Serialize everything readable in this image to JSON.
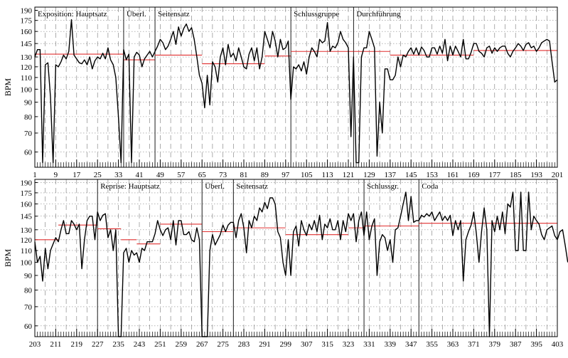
{
  "chart_data": [
    {
      "type": "line",
      "ylabel": "BPM",
      "yscale": "log",
      "ylim": [
        53,
        195
      ],
      "xlim": [
        1,
        201
      ],
      "grid": true,
      "y_ticks": [
        60,
        70,
        80,
        90,
        100,
        110,
        120,
        130,
        145,
        160,
        175,
        190
      ],
      "x_ticks": [
        1,
        9,
        17,
        25,
        33,
        41,
        49,
        57,
        65,
        73,
        81,
        89,
        97,
        105,
        113,
        121,
        129,
        137,
        145,
        153,
        161,
        169,
        177,
        185,
        193,
        201
      ],
      "sections": [
        {
          "label": "Exposition: Hauptsatz",
          "start": 1,
          "end": 35,
          "mean": 133
        },
        {
          "label": "Überl.",
          "start": 35,
          "end": 47,
          "mean": 127
        },
        {
          "label": "Seitensatz",
          "start": 47,
          "end": 99,
          "mean": 129,
          "sub_means": [
            {
              "start": 47,
              "end": 65,
              "mean": 132
            },
            {
              "start": 65,
              "end": 89,
              "mean": 123
            },
            {
              "start": 89,
              "end": 99,
              "mean": 131
            }
          ]
        },
        {
          "label": "Schlussgruppe",
          "start": 99,
          "end": 123,
          "mean": 136
        },
        {
          "label": "Durchführung",
          "start": 123,
          "end": 201,
          "mean": 135,
          "sub_means": [
            {
              "start": 123,
              "end": 137,
              "mean": 136
            },
            {
              "start": 137,
              "end": 169,
              "mean": 132
            },
            {
              "start": 169,
              "end": 201,
              "mean": 137
            }
          ]
        }
      ],
      "series": [
        {
          "x_start": 1,
          "values": [
            130,
            138,
            138,
            55,
            122,
            124,
            94,
            55,
            122,
            120,
            125,
            132,
            128,
            136,
            176,
            132,
            128,
            124,
            123,
            127,
            122,
            130,
            118,
            126,
            130,
            128,
            134,
            128,
            140,
            127,
            122,
            110,
            80,
            55,
            138,
            127,
            133,
            55,
            130,
            135,
            132,
            120,
            128,
            132,
            136,
            130,
            136,
            142,
            150,
            146,
            138,
            142,
            150,
            160,
            144,
            166,
            154,
            164,
            170,
            160,
            165,
            150,
            130,
            112,
            105,
            86,
            112,
            88,
            125,
            120,
            106,
            130,
            140,
            122,
            144,
            130,
            134,
            126,
            140,
            130,
            120,
            118,
            133,
            140,
            126,
            140,
            118,
            130,
            160,
            150,
            140,
            160,
            148,
            130,
            150,
            138,
            140,
            148,
            92,
            120,
            118,
            122,
            116,
            125,
            113,
            130,
            140,
            136,
            130,
            150,
            146,
            148,
            172,
            136,
            142,
            140,
            146,
            160,
            150,
            146,
            140,
            68,
            130,
            55,
            55,
            130,
            140,
            140,
            160,
            150,
            140,
            58,
            90,
            70,
            118,
            118,
            108,
            108,
            112,
            130,
            120,
            132,
            130,
            136,
            140,
            133,
            140,
            132,
            141,
            137,
            130,
            130,
            140,
            140,
            133,
            142,
            134,
            150,
            126,
            142,
            132,
            142,
            136,
            130,
            150,
            128,
            128,
            135,
            145,
            145,
            136,
            134,
            130,
            140,
            142,
            134,
            140,
            136,
            140,
            142,
            142,
            134,
            130,
            136,
            140,
            145,
            142,
            137,
            144,
            146,
            140,
            142,
            136,
            140,
            146,
            148,
            150,
            148,
            125,
            106,
            108
          ]
        }
      ]
    },
    {
      "type": "line",
      "ylabel": "BPM",
      "yscale": "log",
      "ylim": [
        55,
        195
      ],
      "xlim": [
        203,
        403
      ],
      "grid": true,
      "y_ticks": [
        60,
        70,
        80,
        90,
        100,
        110,
        120,
        130,
        145,
        160,
        175,
        190
      ],
      "x_ticks": [
        203,
        211,
        219,
        227,
        235,
        243,
        251,
        259,
        267,
        275,
        283,
        291,
        299,
        307,
        315,
        323,
        331,
        339,
        347,
        355,
        363,
        371,
        379,
        387,
        395,
        403
      ],
      "sections": [
        {
          "label": "",
          "start": 203,
          "end": 227,
          "mean": 120,
          "sub_means": [
            {
              "start": 203,
              "end": 212,
              "mean": 120
            },
            {
              "start": 212,
              "end": 227,
              "mean": 135
            }
          ]
        },
        {
          "label": "Reprise: Hauptsatz",
          "start": 227,
          "end": 267,
          "mean": 125,
          "sub_means": [
            {
              "start": 227,
              "end": 236,
              "mean": 131
            },
            {
              "start": 236,
              "end": 242,
              "mean": 120
            },
            {
              "start": 242,
              "end": 251,
              "mean": 116
            },
            {
              "start": 251,
              "end": 267,
              "mean": 136
            }
          ]
        },
        {
          "label": "Überl.",
          "start": 267,
          "end": 279,
          "mean": 128
        },
        {
          "label": "Seitensatz",
          "start": 279,
          "end": 329,
          "mean": 128,
          "sub_means": [
            {
              "start": 279,
              "end": 299,
              "mean": 132
            },
            {
              "start": 299,
              "end": 323,
              "mean": 125
            },
            {
              "start": 323,
              "end": 329,
              "mean": 132
            }
          ]
        },
        {
          "label": "Schlussgr.",
          "start": 329,
          "end": 350,
          "mean": 134
        },
        {
          "label": "Coda",
          "start": 350,
          "end": 403,
          "mean": 137
        }
      ],
      "series": [
        {
          "x_start": 203,
          "values": [
            118,
            100,
            105,
            86,
            112,
            95,
            110,
            116,
            122,
            118,
            130,
            140,
            126,
            126,
            140,
            136,
            130,
            136,
            95,
            120,
            140,
            145,
            145,
            120,
            150,
            140,
            146,
            148,
            122,
            130,
            110,
            130,
            55,
            55,
            108,
            112,
            100,
            110,
            106,
            108,
            100,
            112,
            110,
            118,
            118,
            118,
            126,
            140,
            130,
            124,
            130,
            132,
            120,
            140,
            115,
            140,
            140,
            125,
            125,
            128,
            120,
            118,
            132,
            120,
            55,
            55,
            55,
            110,
            125,
            115,
            120,
            125,
            135,
            128,
            135,
            138,
            138,
            122,
            140,
            148,
            132,
            108,
            140,
            132,
            145,
            140,
            155,
            150,
            162,
            154,
            168,
            168,
            160,
            128,
            122,
            100,
            90,
            120,
            90,
            128,
            134,
            114,
            140,
            130,
            124,
            136,
            130,
            140,
            128,
            146,
            120,
            136,
            132,
            142,
            130,
            130,
            140,
            120,
            140,
            128,
            148,
            140,
            148,
            118,
            140,
            150,
            124,
            150,
            120,
            134,
            142,
            90,
            118,
            125,
            122,
            110,
            120,
            100,
            130,
            132,
            145,
            160,
            176,
            140,
            170,
            138,
            140,
            140,
            146,
            144,
            148,
            145,
            150,
            140,
            145,
            150,
            140,
            145,
            140,
            146,
            124,
            140,
            130,
            140,
            86,
            120,
            128,
            135,
            150,
            126,
            100,
            128,
            155,
            130,
            55,
            140,
            128,
            145,
            130,
            150,
            126,
            160,
            156,
            176,
            110,
            110,
            176,
            110,
            110,
            176,
            130,
            145,
            140,
            136,
            125,
            120,
            130,
            132,
            134,
            124,
            120,
            128,
            130,
            115,
            100
          ]
        }
      ]
    }
  ]
}
